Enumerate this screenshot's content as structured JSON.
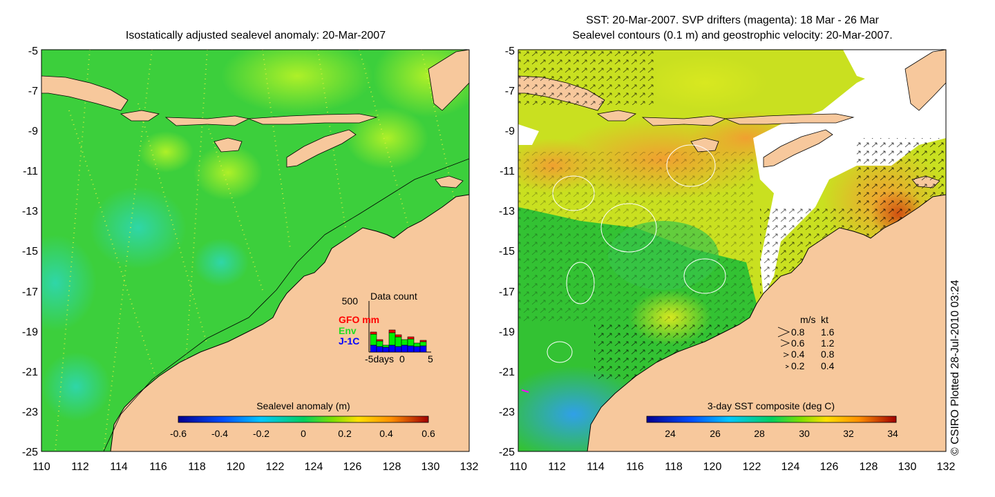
{
  "left_panel": {
    "title": "Isostatically adjusted sealevel anomaly: 20-Mar-2007",
    "y_ticks": [
      "-5",
      "-7",
      "-9",
      "-11",
      "-13",
      "-15",
      "-17",
      "-19",
      "-21",
      "-23",
      "-25"
    ],
    "x_ticks": [
      "110",
      "112",
      "114",
      "116",
      "118",
      "120",
      "122",
      "124",
      "126",
      "128",
      "130",
      "132"
    ],
    "colorbar_label": "Sealevel anomaly (m)",
    "colorbar_ticks": [
      "-0.6",
      "-0.4",
      "-0.2",
      "0",
      "0.2",
      "0.4",
      "0.6"
    ],
    "inset": {
      "title": "Data count",
      "y_max": "500",
      "legend": [
        "GFO mm",
        "Env",
        "J-1C"
      ],
      "x_ticks": [
        "-5days",
        "0",
        "5"
      ],
      "colors": {
        "gfo": "#ff0000",
        "env": "#00ee00",
        "j1c": "#0000ff"
      }
    }
  },
  "right_panel": {
    "title_line1": "SST: 20-Mar-2007. SVP drifters (magenta): 18 Mar - 26 Mar",
    "title_line2": "Sealevel contours (0.1 m) and geostrophic velocity: 20-Mar-2007.",
    "y_ticks": [
      "-5",
      "-7",
      "-9",
      "-11",
      "-13",
      "-15",
      "-17",
      "-19",
      "-21",
      "-23",
      "-25"
    ],
    "x_ticks": [
      "110",
      "112",
      "114",
      "116",
      "118",
      "120",
      "122",
      "124",
      "126",
      "128",
      "130",
      "132"
    ],
    "colorbar_label": "3-day SST composite (deg C)",
    "colorbar_ticks": [
      "24",
      "26",
      "28",
      "30",
      "32",
      "34"
    ],
    "velocity_legend": {
      "header": [
        "m/s",
        "kt"
      ],
      "rows": [
        [
          "0.8",
          "1.6"
        ],
        [
          "0.6",
          "1.2"
        ],
        [
          "0.4",
          "0.8"
        ],
        [
          "0.2",
          "0.4"
        ]
      ]
    }
  },
  "credit": "© CSIRO Plotted 28-Jul-2010 03:24",
  "colors": {
    "land": "#f7c89c",
    "ocean_green": "#22cc22",
    "sst_orange": "#f0a030",
    "cloud_white": "#ffffff"
  }
}
